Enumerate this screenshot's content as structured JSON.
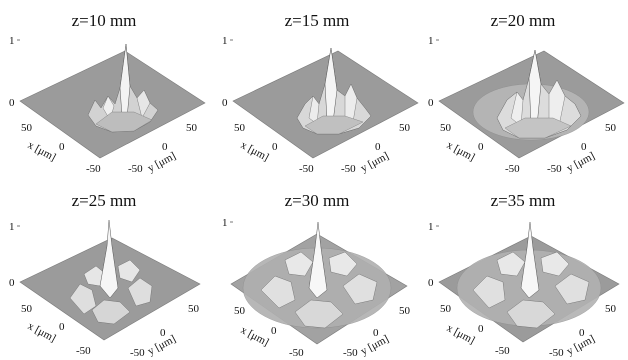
{
  "panels": [
    {
      "title": "z=10 mm",
      "z_top": "1",
      "z_zero": "0",
      "x_label": "x [μm]",
      "y_label": "y [μm]",
      "x_ticks": [
        "50",
        "0",
        "-50"
      ],
      "y_ticks": [
        "-50",
        "0",
        "50"
      ]
    },
    {
      "title": "z=15 mm",
      "z_top": "1",
      "z_zero": "0",
      "x_label": "x [μm]",
      "y_label": "y [μm]",
      "x_ticks": [
        "50",
        "0",
        "-50"
      ],
      "y_ticks": [
        "-50",
        "0",
        "50"
      ]
    },
    {
      "title": "z=20 mm",
      "z_top": "1",
      "z_zero": "0",
      "x_label": "x [μm]",
      "y_label": "y [μm]",
      "x_ticks": [
        "50",
        "0",
        "-50"
      ],
      "y_ticks": [
        "-50",
        "0",
        "50"
      ]
    },
    {
      "title": "z=25 mm",
      "z_top": "1",
      "z_zero": "0",
      "x_label": "x [μm]",
      "y_label": "y [μm]",
      "x_ticks": [
        "50",
        "0",
        "-50"
      ],
      "y_ticks": [
        "-50",
        "0",
        "50"
      ]
    },
    {
      "title": "z=30 mm",
      "z_top": "1",
      "z_zero": "0",
      "x_label": "x [μm]",
      "y_label": "y [μm]",
      "x_ticks": [
        "50",
        "0",
        "-50"
      ],
      "y_ticks": [
        "-50",
        "0",
        "50"
      ]
    },
    {
      "title": "z=35 mm",
      "z_top": "1",
      "z_zero": "0",
      "x_label": "x [μm]",
      "y_label": "y [μm]",
      "x_ticks": [
        "50",
        "0",
        "-50"
      ],
      "y_ticks": [
        "-50",
        "0",
        "50"
      ]
    }
  ],
  "colors": {
    "plane": "#9b9b9b",
    "plane_edge": "#6e6e6e",
    "surface_light": "#f2f2f2",
    "surface_mid": "#c9c9c9",
    "surface_dark": "#5a5a5a",
    "text": "#111111"
  }
}
